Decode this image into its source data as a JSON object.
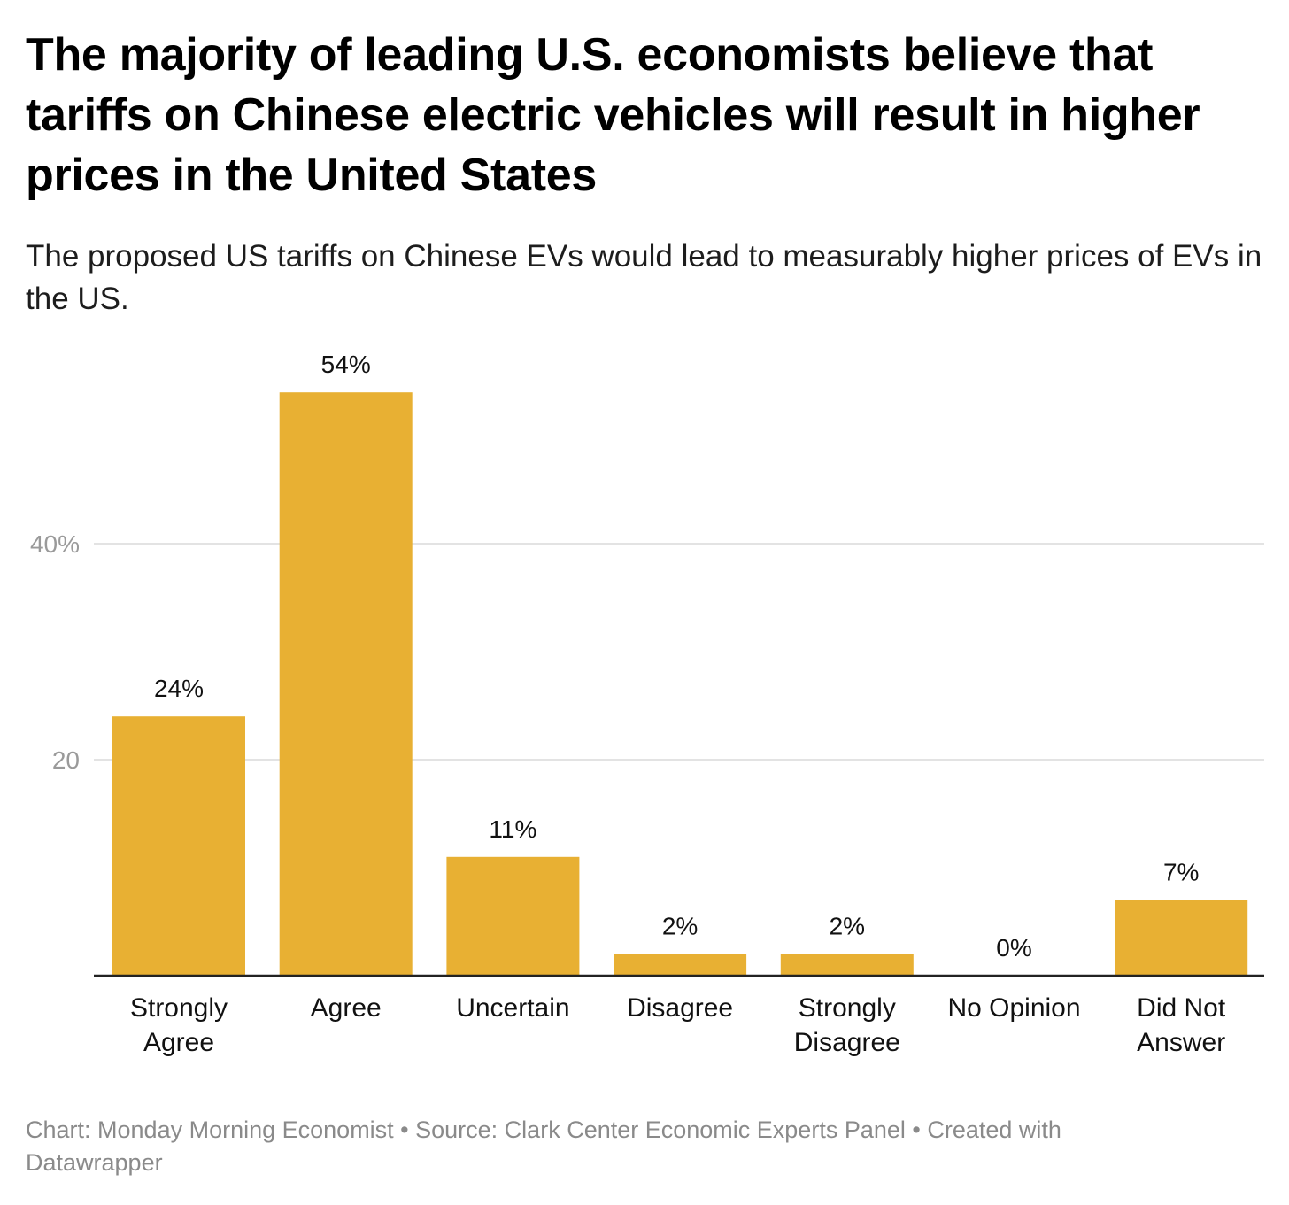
{
  "title": "The majority of leading U.S. economists believe that tariffs on Chinese electric vehicles will result in higher prices in the United States",
  "subtitle": "The proposed US tariffs on Chinese EVs would lead to measurably higher prices of EVs in the US.",
  "footer": {
    "line1": "Chart: Monday Morning Economist • Source: Clark Center Economic Experts Panel • Created with",
    "line2": "Datawrapper"
  },
  "chart_data": {
    "type": "bar",
    "categories": [
      [
        "Strongly",
        "Agree"
      ],
      [
        "Agree"
      ],
      [
        "Uncertain"
      ],
      [
        "Disagree"
      ],
      [
        "Strongly",
        "Disagree"
      ],
      [
        "No Opinion"
      ],
      [
        "Did Not",
        "Answer"
      ]
    ],
    "values": [
      24,
      54,
      11,
      2,
      2,
      0,
      7
    ],
    "value_labels": [
      "24%",
      "54%",
      "11%",
      "2%",
      "2%",
      "0%",
      "7%"
    ],
    "y_ticks": [
      {
        "value": 20,
        "label": "20"
      },
      {
        "value": 40,
        "label": "40%"
      }
    ],
    "ylim": [
      0,
      54
    ],
    "grid": true,
    "bar_color": "#e8b033",
    "grid_color": "#e3e3e3",
    "axis_color": "#222222"
  }
}
